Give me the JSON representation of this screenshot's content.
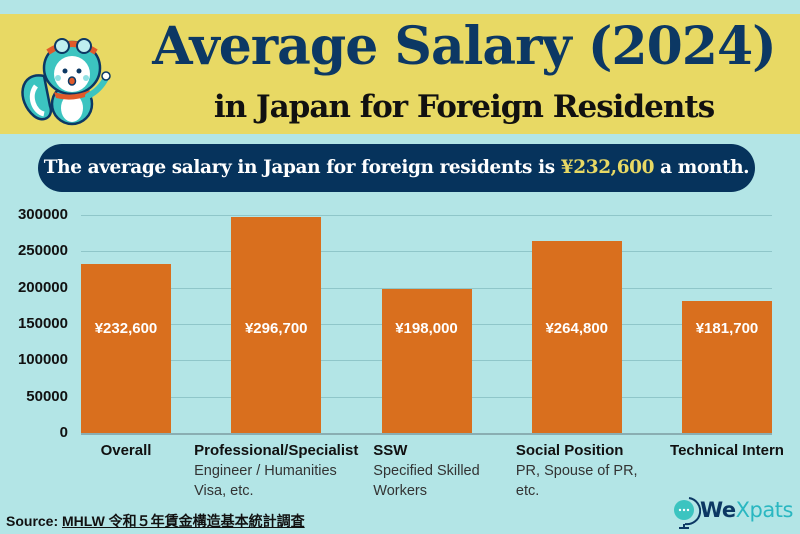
{
  "header": {
    "title": "Average Salary (2024)",
    "subtitle": "in Japan for Foreign Residents"
  },
  "summary": {
    "prefix": "The average salary in Japan for foreign residents is ",
    "highlight": "¥232,600",
    "suffix": " a month."
  },
  "colors": {
    "background": "#b3e5e6",
    "banner": "#e8d964",
    "title": "#0c3864",
    "pill": "#06335c",
    "bar": "#d96f1e",
    "highlight": "#e8d964"
  },
  "chart_data": {
    "type": "bar",
    "title": "Average Salary (2024) in Japan for Foreign Residents",
    "xlabel": "",
    "ylabel": "",
    "ylim": [
      0,
      300000
    ],
    "yticks": [
      "300000",
      "250000",
      "200000",
      "150000",
      "100000",
      "50000",
      "0"
    ],
    "grid": true,
    "legend": null,
    "categories": [
      "Overall",
      "Professional/Specialist",
      "SSW",
      "Social Position",
      "Technical Intern"
    ],
    "category_descriptions": [
      [],
      [
        "Engineer / Humanities",
        "Visa, etc."
      ],
      [
        "Specified Skilled",
        "Workers"
      ],
      [
        "PR, Spouse of PR,",
        "etc."
      ],
      []
    ],
    "values": [
      232600,
      296700,
      198000,
      264800,
      181700
    ],
    "data_labels": [
      "¥232,600",
      "¥296,700",
      "¥198,000",
      "¥264,800",
      "¥181,700"
    ]
  },
  "footer": {
    "source_label": "Source: ",
    "source_text": "MHLW 令和５年賃金構造基本統計調査",
    "logo_we": "We",
    "logo_rest": "Xpats"
  }
}
